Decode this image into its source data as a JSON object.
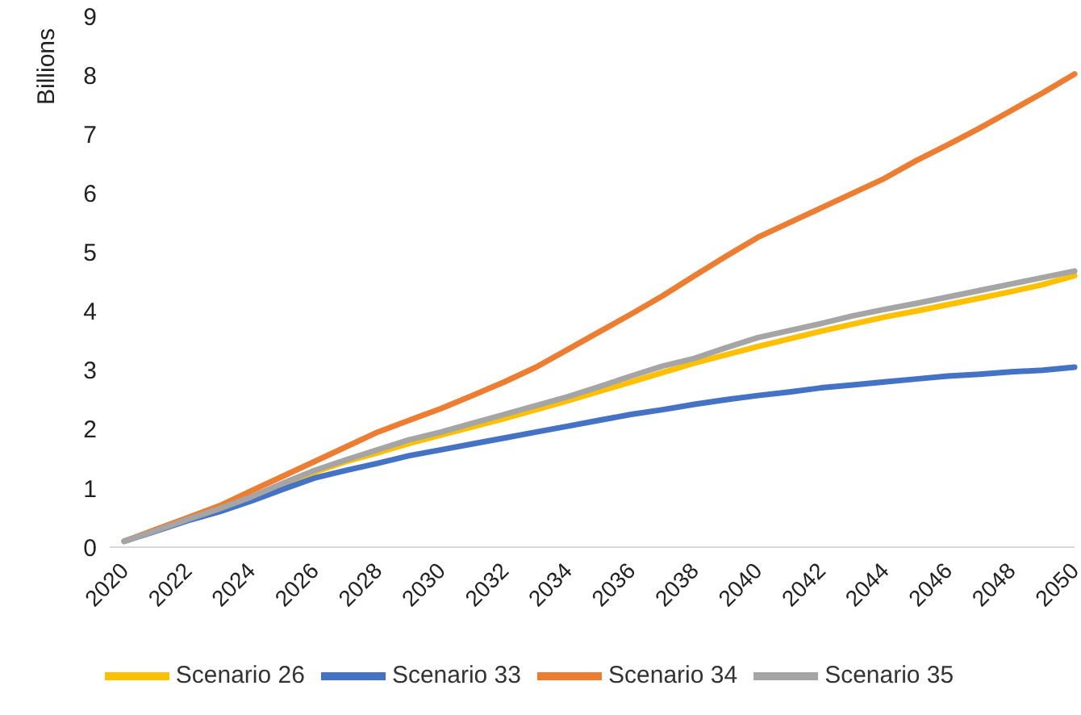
{
  "chart_data": {
    "type": "line",
    "ylabel": "Billions",
    "categories": [
      "2020",
      null,
      "2022",
      null,
      "2024",
      null,
      "2026",
      null,
      "2028",
      null,
      "2030",
      null,
      "2032",
      null,
      "2034",
      null,
      "2036",
      null,
      "2038",
      null,
      "2040",
      null,
      "2042",
      null,
      "2044",
      null,
      "2046",
      null,
      "2048",
      null,
      "2050"
    ],
    "series": [
      {
        "name": "Scenario 26",
        "color": "#ffc000",
        "values": [
          null,
          null,
          null,
          null,
          0.84,
          1.06,
          1.27,
          1.45,
          1.6,
          1.76,
          1.9,
          2.04,
          2.18,
          2.33,
          2.48,
          2.64,
          2.8,
          2.96,
          3.12,
          3.26,
          3.4,
          3.53,
          3.66,
          3.78,
          3.9,
          4.0,
          4.11,
          4.22,
          4.33,
          4.45,
          4.6
        ]
      },
      {
        "name": "Scenario 33",
        "color": "#4472c4",
        "values": [
          0.1,
          0.27,
          0.45,
          0.6,
          0.78,
          0.98,
          1.17,
          1.3,
          1.42,
          1.55,
          1.65,
          1.75,
          1.85,
          1.95,
          2.05,
          2.15,
          2.25,
          2.33,
          2.42,
          2.5,
          2.57,
          2.63,
          2.7,
          2.75,
          2.8,
          2.85,
          2.9,
          2.93,
          2.97,
          3.0,
          3.05
        ]
      },
      {
        "name": "Scenario 34",
        "color": "#ed7d31",
        "values": [
          0.1,
          0.3,
          0.5,
          0.7,
          0.95,
          1.2,
          1.45,
          1.7,
          1.95,
          2.15,
          2.35,
          2.57,
          2.8,
          3.05,
          3.35,
          3.65,
          3.95,
          4.26,
          4.6,
          4.93,
          5.25,
          5.5,
          5.75,
          6.0,
          6.25,
          6.55,
          6.82,
          7.1,
          7.4,
          7.7,
          8.02
        ]
      },
      {
        "name": "Scenario 35",
        "color": "#a5a5a5",
        "values": [
          0.1,
          0.28,
          0.47,
          0.65,
          0.85,
          1.08,
          1.3,
          1.48,
          1.65,
          1.82,
          1.95,
          2.1,
          2.25,
          2.4,
          2.55,
          2.72,
          2.9,
          3.07,
          3.2,
          3.38,
          3.55,
          3.67,
          3.79,
          3.92,
          4.03,
          4.13,
          4.24,
          4.35,
          4.46,
          4.57,
          4.68
        ]
      }
    ],
    "ylim": [
      0,
      9
    ],
    "yticks": [
      0,
      1,
      2,
      3,
      4,
      5,
      6,
      7,
      8,
      9
    ],
    "grid": false,
    "legend": "bottom",
    "marker": "none",
    "line_style": "solid"
  }
}
